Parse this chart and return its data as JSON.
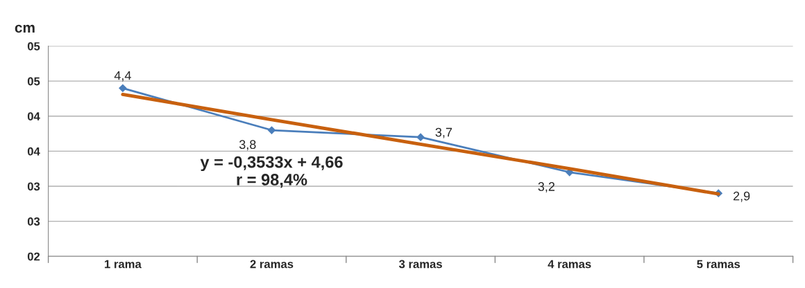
{
  "chart_data": {
    "type": "line",
    "ylabel": "cm",
    "categories": [
      "1 rama",
      "2 ramas",
      "3 ramas",
      "4 ramas",
      "5 ramas"
    ],
    "series": [
      {
        "color": "#4a7ebb",
        "values": [
          4.4,
          3.8,
          3.7,
          3.2,
          2.9
        ],
        "marker": "diamond",
        "value_labels": [
          "4,4",
          "3,8",
          "3,7",
          "3,2",
          "2,9"
        ]
      },
      {
        "type": "line",
        "color": "#c8600e",
        "values": [
          4.31,
          3.95,
          3.6,
          3.25,
          2.89
        ],
        "marker": "none"
      }
    ],
    "ylim": [
      2.0,
      5.0
    ],
    "yticks": [
      {
        "value": 2.0,
        "label": "02"
      },
      {
        "value": 2.5,
        "label": "03"
      },
      {
        "value": 3.0,
        "label": "03"
      },
      {
        "value": 3.5,
        "label": "04"
      },
      {
        "value": 4.0,
        "label": "04"
      },
      {
        "value": 4.5,
        "label": "05"
      },
      {
        "value": 5.0,
        "label": "05"
      }
    ],
    "grid": "y",
    "line_style": "solid",
    "legend": false,
    "annotations": [
      "y = -0,3533x + 4,66\nr = 98,4%"
    ]
  }
}
